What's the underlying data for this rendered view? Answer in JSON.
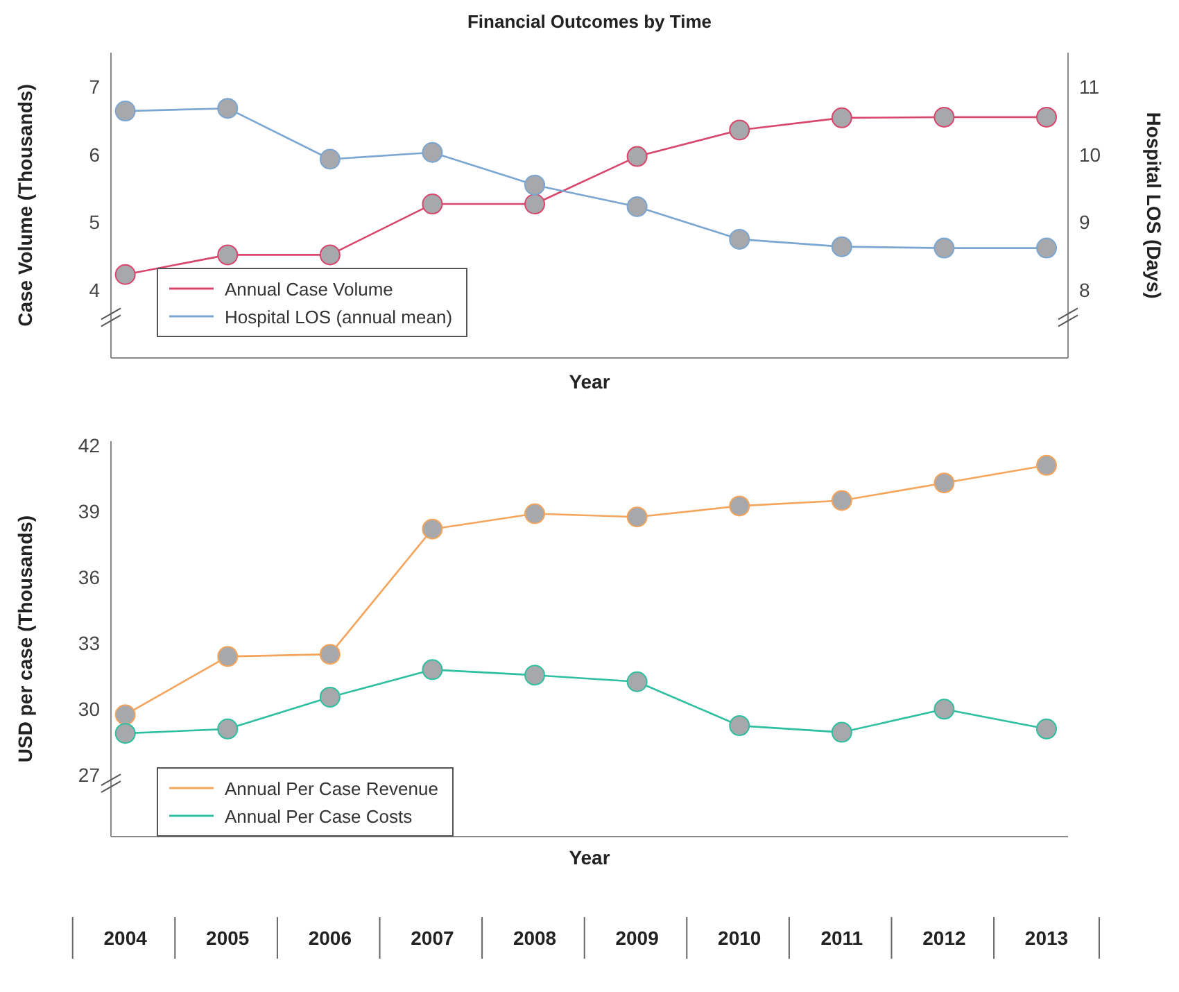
{
  "chart_data": [
    {
      "type": "line",
      "title": "Financial Outcomes by Time",
      "xlabel": "Year",
      "ylabel": "Case Volume (Thousands)",
      "y2label": "Hospital LOS (Days)",
      "categories": [
        "2004",
        "2005",
        "2006",
        "2007",
        "2008",
        "2009",
        "2010",
        "2011",
        "2012",
        "2013"
      ],
      "series": [
        {
          "name": "Annual Case Volume",
          "color": "#d8466c",
          "values": [
            4.23,
            4.52,
            4.52,
            5.27,
            5.27,
            5.97,
            6.36,
            6.54,
            6.55,
            6.55
          ]
        },
        {
          "name": "Hospital LOS (annual mean)",
          "color": "#7ba6d1",
          "axis": "y2",
          "values": [
            10.64,
            10.68,
            9.93,
            10.03,
            9.55,
            9.23,
            8.75,
            8.64,
            8.62,
            8.62
          ]
        }
      ],
      "ylim": [
        3,
        7.5
      ],
      "yticks": [
        4,
        5,
        6,
        7
      ],
      "y2lim": [
        7,
        11.5
      ],
      "y2ticks": [
        8,
        9,
        10,
        11
      ],
      "tick_labels": "y",
      "legend": "bottom left",
      "marker": "circle",
      "grid": false
    },
    {
      "type": "line",
      "xlabel": "Year",
      "ylabel": "USD per case (Thousands)",
      "categories": [
        "2004",
        "2005",
        "2006",
        "2007",
        "2008",
        "2009",
        "2010",
        "2011",
        "2012",
        "2013"
      ],
      "series": [
        {
          "name": "Annual Per Case Revenue",
          "color": "#f5a55b",
          "values": [
            29.75,
            32.4,
            32.5,
            38.2,
            38.9,
            38.75,
            39.25,
            39.5,
            40.3,
            41.1
          ]
        },
        {
          "name": "Annual Per Case Costs",
          "color": "#2dbf9f",
          "values": [
            28.9,
            29.1,
            30.55,
            31.8,
            31.55,
            31.25,
            29.25,
            28.95,
            30.0,
            29.1
          ]
        }
      ],
      "ylim": [
        24.2,
        42.2
      ],
      "yticks": [
        27,
        30,
        33,
        36,
        39,
        42
      ],
      "legend": "bottom left",
      "marker": "circle",
      "grid": false
    }
  ]
}
